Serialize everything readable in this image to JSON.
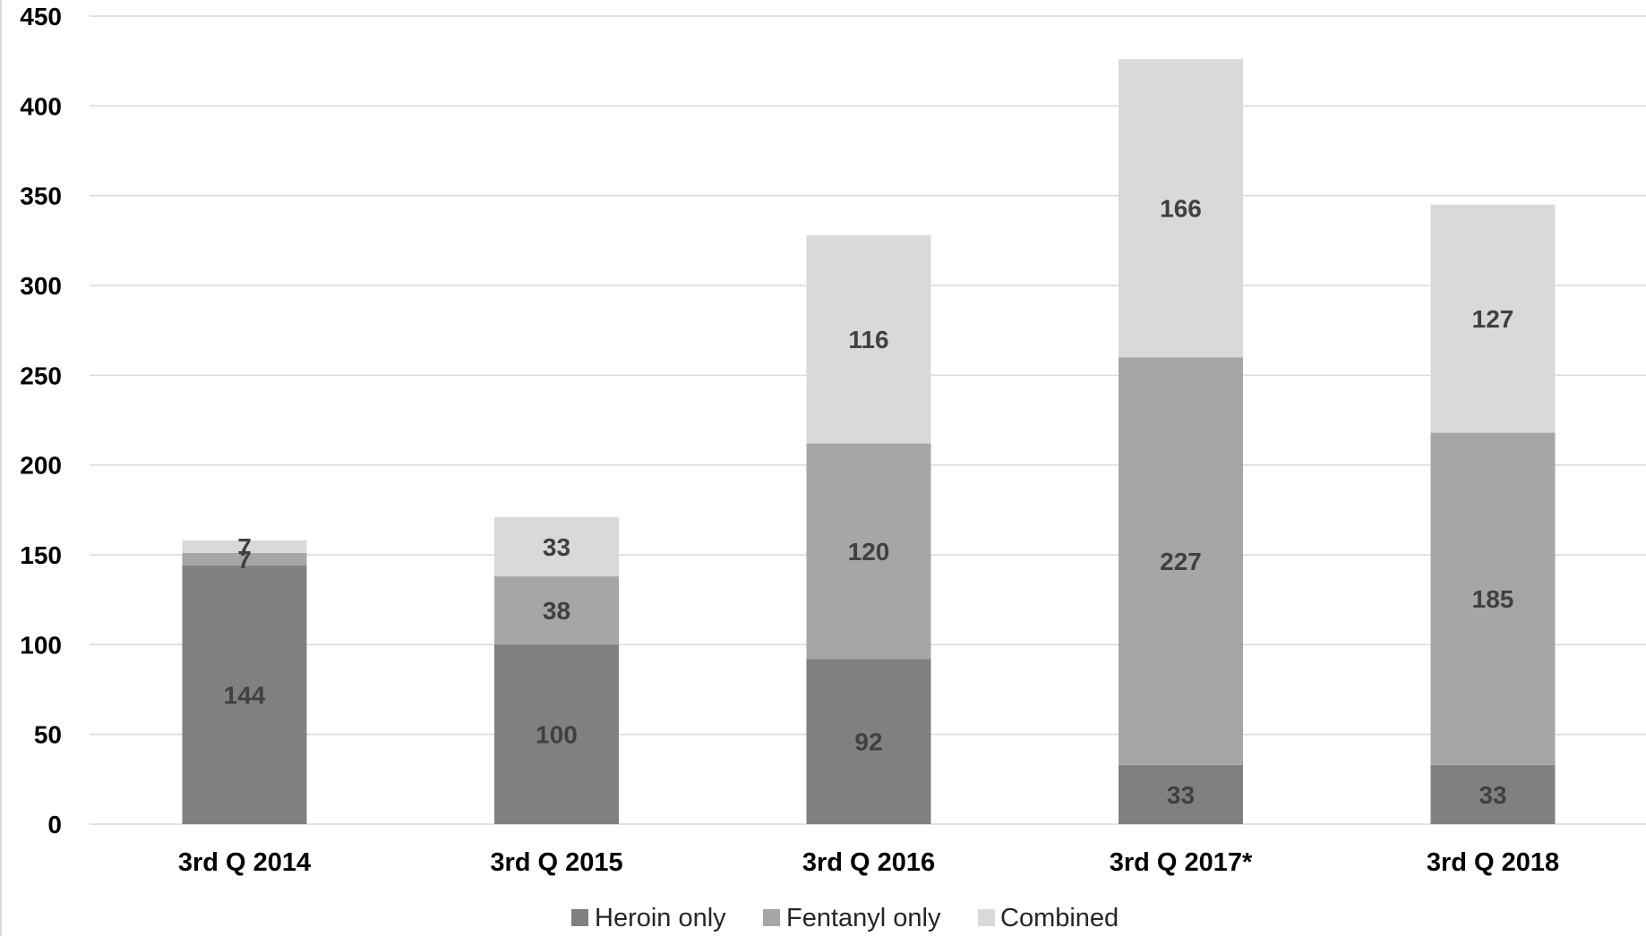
{
  "chart_data": {
    "type": "bar",
    "stacked": true,
    "title": "",
    "xlabel": "",
    "ylabel": "",
    "ylim": [
      0,
      450
    ],
    "yticks": [
      0,
      50,
      100,
      150,
      200,
      250,
      300,
      350,
      400,
      450
    ],
    "grid": true,
    "legend_position": "bottom",
    "categories": [
      "3rd Q 2014",
      "3rd Q 2015",
      "3rd Q 2016",
      "3rd Q 2017*",
      "3rd Q 2018"
    ],
    "series": [
      {
        "name": "Heroin only",
        "color": "#808080",
        "values": [
          144,
          100,
          92,
          33,
          33
        ]
      },
      {
        "name": "Fentanyl only",
        "color": "#a6a6a6",
        "values": [
          7,
          38,
          120,
          227,
          185
        ]
      },
      {
        "name": "Combined",
        "color": "#d9d9d9",
        "values": [
          7,
          33,
          116,
          166,
          127
        ]
      }
    ]
  }
}
